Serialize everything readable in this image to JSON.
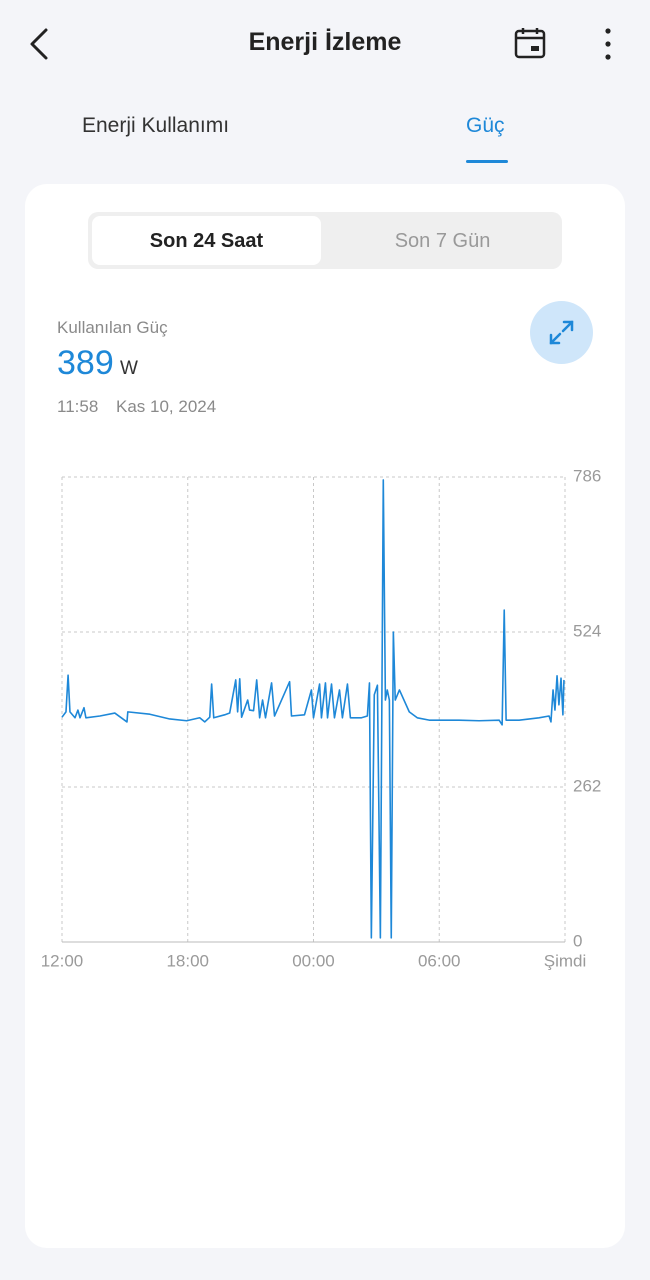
{
  "header": {
    "title": "Enerji İzleme"
  },
  "tabs": [
    "Enerji Kullanımı",
    "Güç"
  ],
  "range_options": [
    "Son 24 Saat",
    "Son 7 Gün"
  ],
  "reading": {
    "label": "Kullanılan Güç",
    "value": 389,
    "unit": "W",
    "time": "11:58",
    "date": "Kas 10, 2024"
  },
  "chart_data": {
    "type": "line",
    "x": [
      0,
      0.19,
      0.29,
      0.38,
      0.62,
      0.76,
      0.86,
      1.05,
      1.14,
      1.81,
      2.52,
      3.1,
      3.14,
      4.19,
      5.14,
      5.95,
      6.57,
      6.81,
      7.05,
      7.14,
      7.24,
      7.76,
      8.0,
      8.29,
      8.38,
      8.48,
      8.57,
      8.86,
      8.95,
      9.14,
      9.29,
      9.43,
      9.57,
      9.71,
      10.0,
      10.14,
      10.86,
      10.95,
      11.57,
      11.9,
      12.0,
      12.29,
      12.38,
      12.57,
      12.67,
      12.86,
      13.0,
      13.24,
      13.38,
      13.62,
      13.76,
      14.29,
      14.57,
      14.67,
      14.76,
      14.9,
      15.05,
      15.19,
      15.33,
      15.43,
      15.52,
      15.62,
      15.71,
      15.81,
      15.9,
      16.1,
      16.57,
      16.95,
      17.52,
      18.95,
      19.9,
      20.86,
      21.0,
      21.1,
      21.19,
      21.81,
      22.76,
      23.24,
      23.33,
      23.43,
      23.52,
      23.62,
      23.71,
      23.81,
      23.9,
      23.95
    ],
    "series": [
      {
        "color": "#1e88d8",
        "values": [
          380,
          389,
          451,
          389,
          379,
          392,
          379,
          396,
          379,
          382,
          387,
          372,
          389,
          385,
          377,
          374,
          379,
          372,
          380,
          436,
          379,
          384,
          387,
          443,
          389,
          445,
          380,
          409,
          392,
          391,
          443,
          379,
          409,
          379,
          438,
          382,
          440,
          382,
          384,
          426,
          379,
          436,
          379,
          438,
          379,
          436,
          379,
          426,
          379,
          436,
          379,
          379,
          382,
          438,
          7,
          418,
          434,
          7,
          781,
          409,
          426,
          409,
          7,
          524,
          409,
          426,
          389,
          379,
          375,
          375,
          374,
          375,
          367,
          561,
          375,
          375,
          379,
          382,
          372,
          426,
          392,
          450,
          401,
          446,
          384,
          443
        ]
      }
    ],
    "xlim": [
      0,
      24
    ],
    "xticks": [
      {
        "value": 0,
        "label": "12:00"
      },
      {
        "value": 6,
        "label": "18:00"
      },
      {
        "value": 12,
        "label": "00:00"
      },
      {
        "value": 18,
        "label": "06:00"
      },
      {
        "value": 24,
        "label": "Şimdi"
      }
    ],
    "ylim": [
      0,
      786
    ],
    "yticks": [
      0,
      262,
      524,
      786
    ],
    "grid": true
  }
}
